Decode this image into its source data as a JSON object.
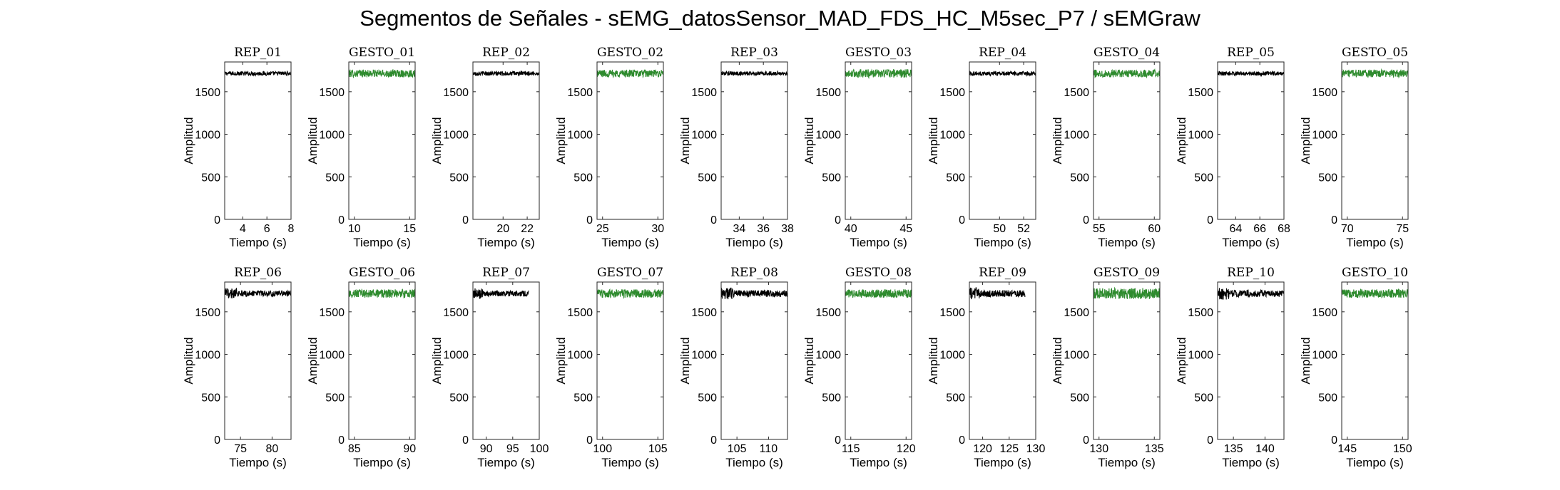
{
  "title": "Segmentos de Señales - sEMG_datosSensor_MAD_FDS_HC_M5sec_P7 / sEMGraw",
  "colors": {
    "rep": "#000000",
    "gesto": "#2e8b2e"
  },
  "chart_data": [
    {
      "type": "line",
      "title": "REP_01",
      "xlabel": "Tiempo (s)",
      "ylabel": "Amplitud",
      "xlim": [
        2.5,
        8
      ],
      "ylim": [
        0,
        1850
      ],
      "xticks": [
        4,
        6,
        8
      ],
      "yticks": [
        0,
        500,
        1000,
        1500
      ],
      "color": "rep",
      "x_range": [
        2.5,
        8
      ],
      "y_mean": 1715,
      "y_noise": 25
    },
    {
      "type": "line",
      "title": "GESTO_01",
      "xlabel": "Tiempo (s)",
      "ylabel": "Amplitud",
      "xlim": [
        9.5,
        15.5
      ],
      "ylim": [
        0,
        1850
      ],
      "xticks": [
        10,
        15
      ],
      "yticks": [
        0,
        500,
        1000,
        1500
      ],
      "color": "gesto",
      "x_range": [
        9.5,
        15.5
      ],
      "y_mean": 1715,
      "y_noise": 45
    },
    {
      "type": "line",
      "title": "REP_02",
      "xlabel": "Tiempo (s)",
      "ylabel": "Amplitud",
      "xlim": [
        17.5,
        23
      ],
      "ylim": [
        0,
        1850
      ],
      "xticks": [
        20,
        22
      ],
      "yticks": [
        0,
        500,
        1000,
        1500
      ],
      "color": "rep",
      "x_range": [
        17.5,
        23
      ],
      "y_mean": 1715,
      "y_noise": 25
    },
    {
      "type": "line",
      "title": "GESTO_02",
      "xlabel": "Tiempo (s)",
      "ylabel": "Amplitud",
      "xlim": [
        24.5,
        30.5
      ],
      "ylim": [
        0,
        1850
      ],
      "xticks": [
        25,
        30
      ],
      "yticks": [
        0,
        500,
        1000,
        1500
      ],
      "color": "gesto",
      "x_range": [
        24.5,
        30.5
      ],
      "y_mean": 1715,
      "y_noise": 45
    },
    {
      "type": "line",
      "title": "REP_03",
      "xlabel": "Tiempo (s)",
      "ylabel": "Amplitud",
      "xlim": [
        32.5,
        38
      ],
      "ylim": [
        0,
        1850
      ],
      "xticks": [
        34,
        36,
        38
      ],
      "yticks": [
        0,
        500,
        1000,
        1500
      ],
      "color": "rep",
      "x_range": [
        32.5,
        38
      ],
      "y_mean": 1715,
      "y_noise": 25
    },
    {
      "type": "line",
      "title": "GESTO_03",
      "xlabel": "Tiempo (s)",
      "ylabel": "Amplitud",
      "xlim": [
        39.5,
        45.5
      ],
      "ylim": [
        0,
        1850
      ],
      "xticks": [
        40,
        45
      ],
      "yticks": [
        0,
        500,
        1000,
        1500
      ],
      "color": "gesto",
      "x_range": [
        39.5,
        45.5
      ],
      "y_mean": 1715,
      "y_noise": 50
    },
    {
      "type": "line",
      "title": "REP_04",
      "xlabel": "Tiempo (s)",
      "ylabel": "Amplitud",
      "xlim": [
        47.5,
        53
      ],
      "ylim": [
        0,
        1850
      ],
      "xticks": [
        50,
        52
      ],
      "yticks": [
        0,
        500,
        1000,
        1500
      ],
      "color": "rep",
      "x_range": [
        47.5,
        53
      ],
      "y_mean": 1715,
      "y_noise": 25
    },
    {
      "type": "line",
      "title": "GESTO_04",
      "xlabel": "Tiempo (s)",
      "ylabel": "Amplitud",
      "xlim": [
        54.5,
        60.5
      ],
      "ylim": [
        0,
        1850
      ],
      "xticks": [
        55,
        60
      ],
      "yticks": [
        0,
        500,
        1000,
        1500
      ],
      "color": "gesto",
      "x_range": [
        54.5,
        60.5
      ],
      "y_mean": 1715,
      "y_noise": 45
    },
    {
      "type": "line",
      "title": "REP_05",
      "xlabel": "Tiempo (s)",
      "ylabel": "Amplitud",
      "xlim": [
        62.5,
        68
      ],
      "ylim": [
        0,
        1850
      ],
      "xticks": [
        64,
        66,
        68
      ],
      "yticks": [
        0,
        500,
        1000,
        1500
      ],
      "color": "rep",
      "x_range": [
        62.5,
        68
      ],
      "y_mean": 1715,
      "y_noise": 25
    },
    {
      "type": "line",
      "title": "GESTO_05",
      "xlabel": "Tiempo (s)",
      "ylabel": "Amplitud",
      "xlim": [
        69.5,
        75.5
      ],
      "ylim": [
        0,
        1850
      ],
      "xticks": [
        70,
        75
      ],
      "yticks": [
        0,
        500,
        1000,
        1500
      ],
      "color": "gesto",
      "x_range": [
        69.5,
        75.5
      ],
      "y_mean": 1715,
      "y_noise": 45
    },
    {
      "type": "line",
      "title": "REP_06",
      "xlabel": "Tiempo (s)",
      "ylabel": "Amplitud",
      "xlim": [
        72.5,
        83
      ],
      "ylim": [
        0,
        1850
      ],
      "xticks": [
        75,
        80
      ],
      "yticks": [
        0,
        500,
        1000,
        1500
      ],
      "color": "rep",
      "x_range": [
        72.5,
        83
      ],
      "y_mean": 1715,
      "y_noise": 35
    },
    {
      "type": "line",
      "title": "GESTO_06",
      "xlabel": "Tiempo (s)",
      "ylabel": "Amplitud",
      "xlim": [
        84.5,
        90.5
      ],
      "ylim": [
        0,
        1850
      ],
      "xticks": [
        85,
        90
      ],
      "yticks": [
        0,
        500,
        1000,
        1500
      ],
      "color": "gesto",
      "x_range": [
        84.5,
        90.5
      ],
      "y_mean": 1715,
      "y_noise": 50
    },
    {
      "type": "line",
      "title": "REP_07",
      "xlabel": "Tiempo (s)",
      "ylabel": "Amplitud",
      "xlim": [
        87.5,
        100
      ],
      "ylim": [
        0,
        1850
      ],
      "xticks": [
        90,
        95,
        100
      ],
      "yticks": [
        0,
        500,
        1000,
        1500
      ],
      "color": "rep",
      "x_range": [
        87.5,
        98
      ],
      "y_mean": 1715,
      "y_noise": 35
    },
    {
      "type": "line",
      "title": "GESTO_07",
      "xlabel": "Tiempo (s)",
      "ylabel": "Amplitud",
      "xlim": [
        99.5,
        105.5
      ],
      "ylim": [
        0,
        1850
      ],
      "xticks": [
        100,
        105
      ],
      "yticks": [
        0,
        500,
        1000,
        1500
      ],
      "color": "gesto",
      "x_range": [
        99.5,
        105.5
      ],
      "y_mean": 1715,
      "y_noise": 50
    },
    {
      "type": "line",
      "title": "REP_08",
      "xlabel": "Tiempo (s)",
      "ylabel": "Amplitud",
      "xlim": [
        102.5,
        113
      ],
      "ylim": [
        0,
        1850
      ],
      "xticks": [
        105,
        110
      ],
      "yticks": [
        0,
        500,
        1000,
        1500
      ],
      "color": "rep",
      "x_range": [
        102.5,
        113
      ],
      "y_mean": 1715,
      "y_noise": 40
    },
    {
      "type": "line",
      "title": "GESTO_08",
      "xlabel": "Tiempo (s)",
      "ylabel": "Amplitud",
      "xlim": [
        114.5,
        120.5
      ],
      "ylim": [
        0,
        1850
      ],
      "xticks": [
        115,
        120
      ],
      "yticks": [
        0,
        500,
        1000,
        1500
      ],
      "color": "gesto",
      "x_range": [
        114.5,
        120.5
      ],
      "y_mean": 1715,
      "y_noise": 50
    },
    {
      "type": "line",
      "title": "REP_09",
      "xlabel": "Tiempo (s)",
      "ylabel": "Amplitud",
      "xlim": [
        117.5,
        130
      ],
      "ylim": [
        0,
        1850
      ],
      "xticks": [
        120,
        125,
        130
      ],
      "yticks": [
        0,
        500,
        1000,
        1500
      ],
      "color": "rep",
      "x_range": [
        117.5,
        128
      ],
      "y_mean": 1715,
      "y_noise": 40
    },
    {
      "type": "line",
      "title": "GESTO_09",
      "xlabel": "Tiempo (s)",
      "ylabel": "Amplitud",
      "xlim": [
        129.5,
        135.5
      ],
      "ylim": [
        0,
        1850
      ],
      "xticks": [
        130,
        135
      ],
      "yticks": [
        0,
        500,
        1000,
        1500
      ],
      "color": "gesto",
      "x_range": [
        129.5,
        135.5
      ],
      "y_mean": 1715,
      "y_noise": 65
    },
    {
      "type": "line",
      "title": "REP_10",
      "xlabel": "Tiempo (s)",
      "ylabel": "Amplitud",
      "xlim": [
        132.5,
        143
      ],
      "ylim": [
        0,
        1850
      ],
      "xticks": [
        135,
        140
      ],
      "yticks": [
        0,
        500,
        1000,
        1500
      ],
      "color": "rep",
      "x_range": [
        132.5,
        143
      ],
      "y_mean": 1715,
      "y_noise": 40
    },
    {
      "type": "line",
      "title": "GESTO_10",
      "xlabel": "Tiempo (s)",
      "ylabel": "Amplitud",
      "xlim": [
        144.5,
        150.5
      ],
      "ylim": [
        0,
        1850
      ],
      "xticks": [
        145,
        150
      ],
      "yticks": [
        0,
        500,
        1000,
        1500
      ],
      "color": "gesto",
      "x_range": [
        144.5,
        150.5
      ],
      "y_mean": 1715,
      "y_noise": 50
    }
  ]
}
